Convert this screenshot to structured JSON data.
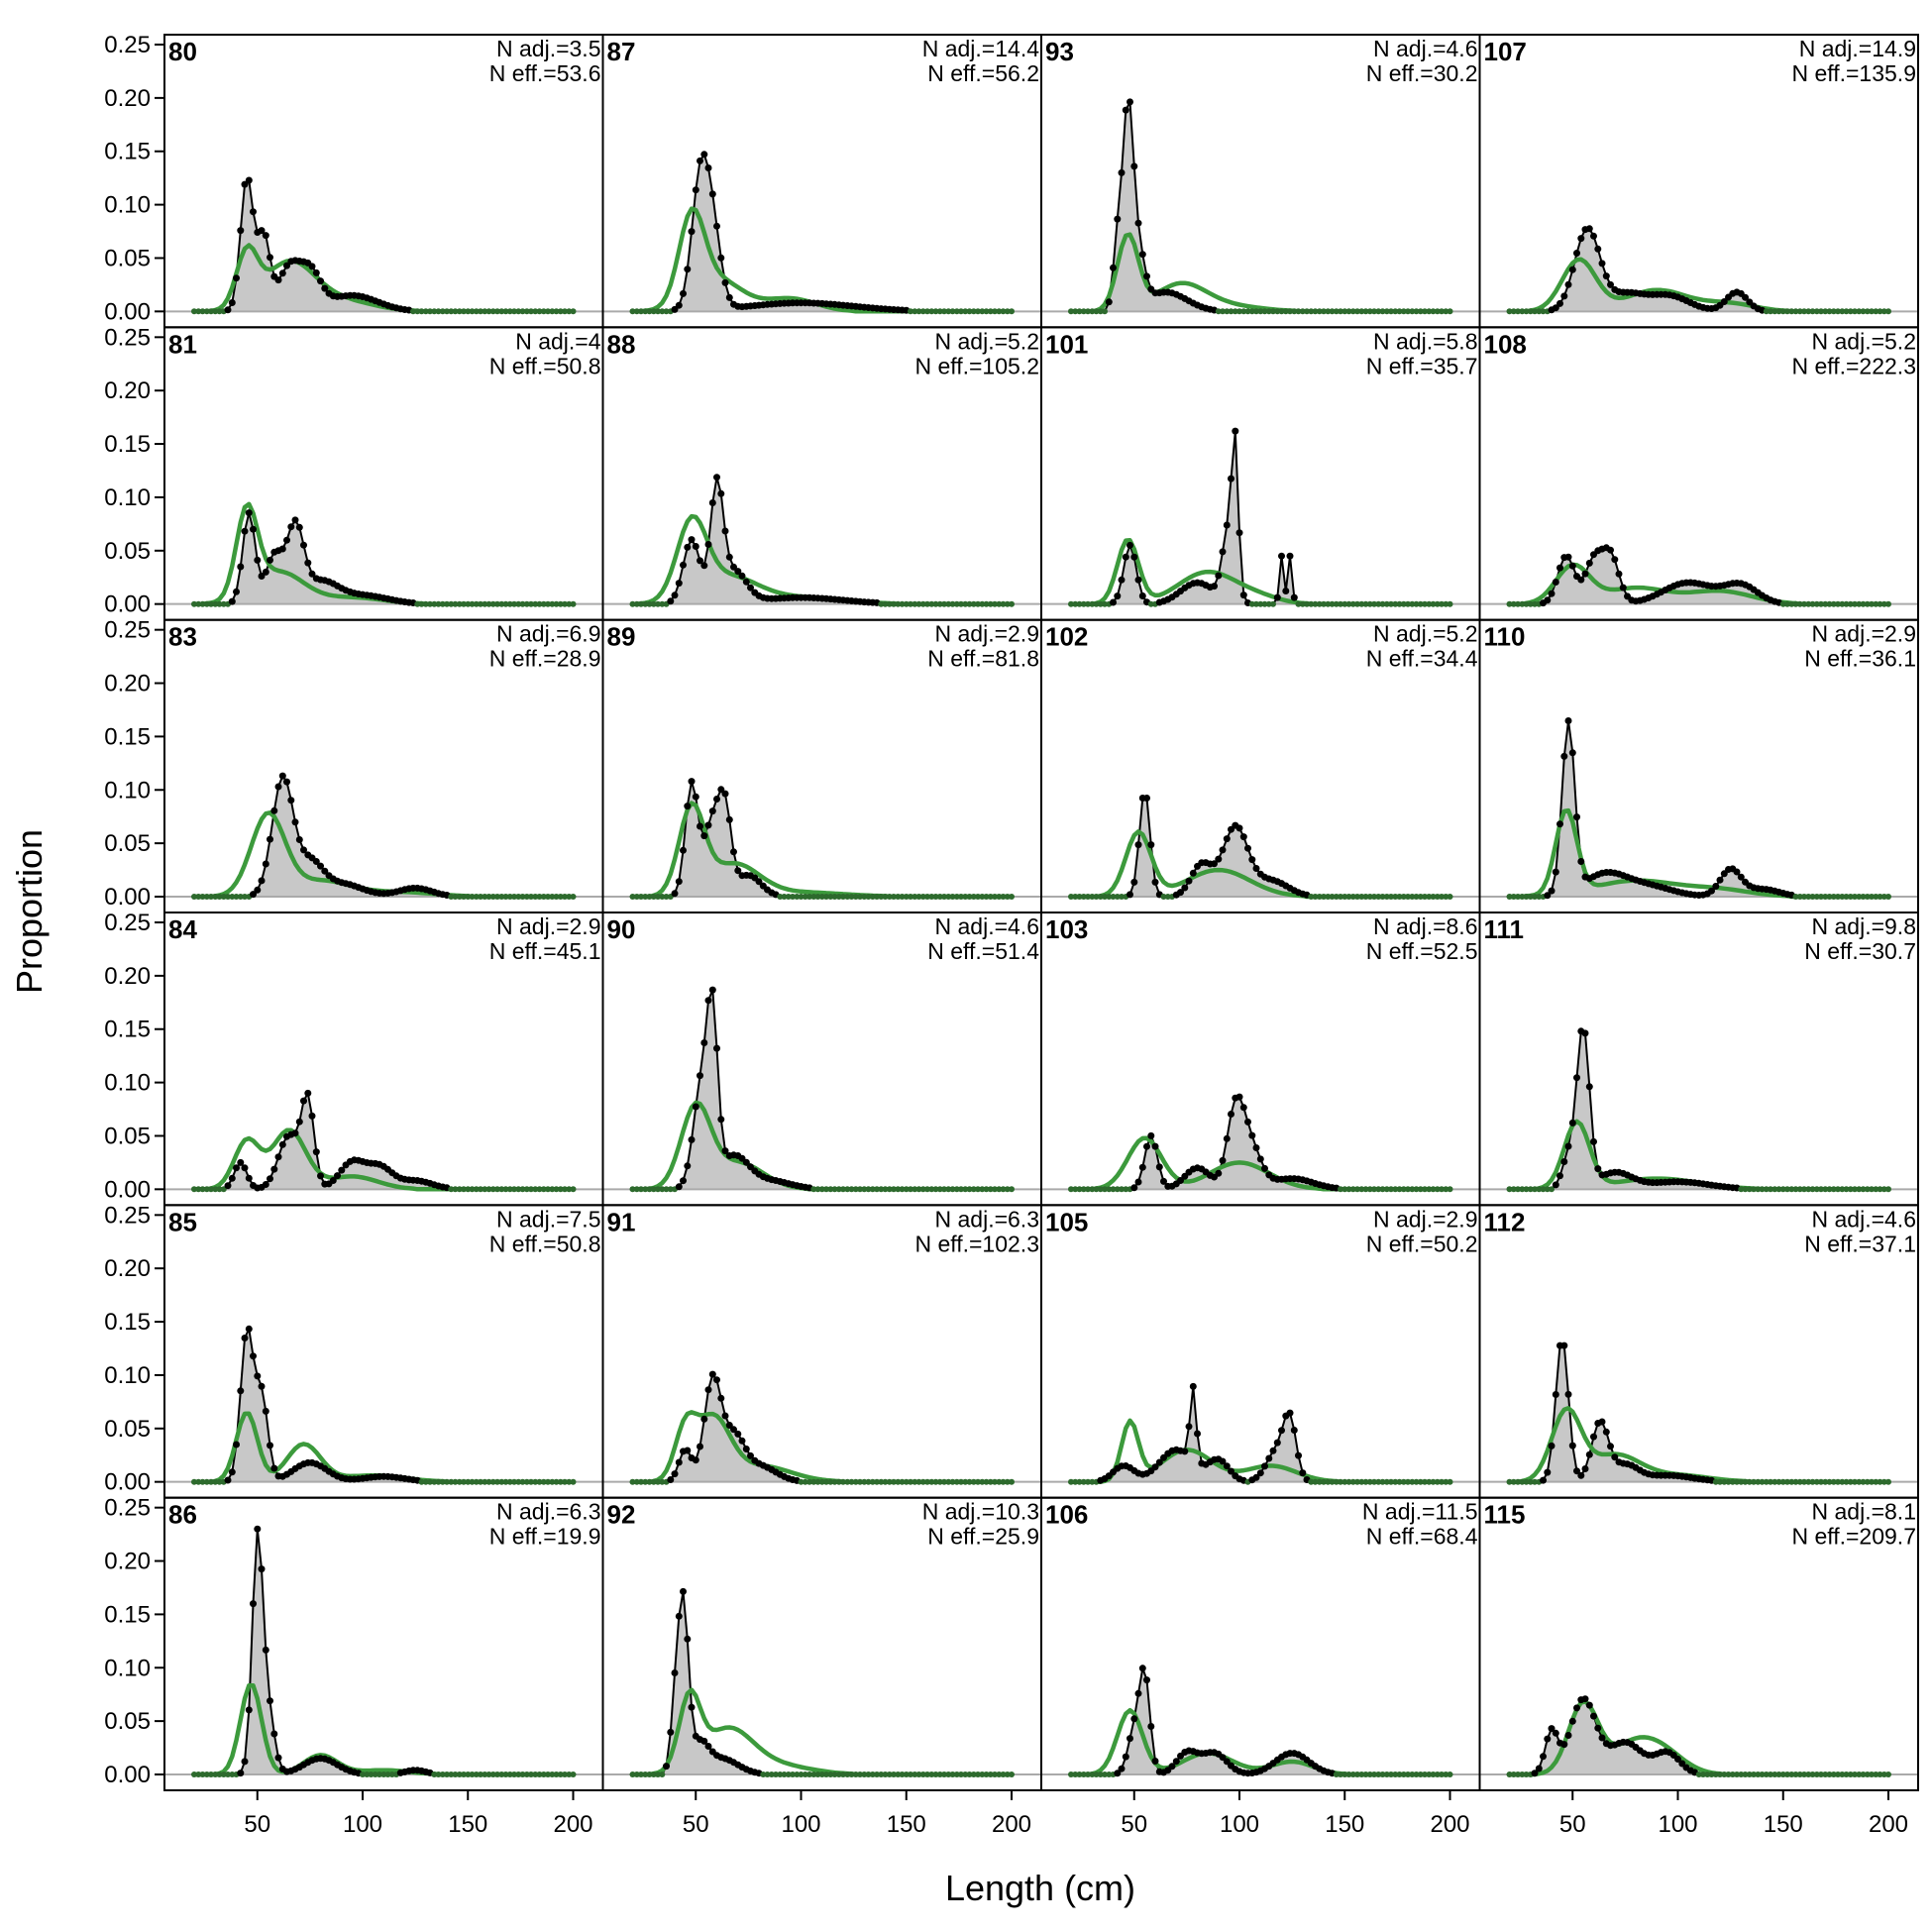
{
  "chart_data": {
    "type": "line",
    "xlabel": "Length (cm)",
    "ylabel": "Proportion",
    "xlim": [
      20,
      200
    ],
    "ylim": [
      0,
      0.25
    ],
    "x_ticks": [
      50,
      100,
      150,
      200
    ],
    "y_ticks": [
      "0.00",
      "0.05",
      "0.10",
      "0.15",
      "0.20",
      "0.25"
    ],
    "grid": false,
    "colors": {
      "observed": "#000000",
      "fill": "#c8c8c8",
      "expected": "#3c9a3c",
      "baseline": "#aaaaaa"
    },
    "columns": 4,
    "rows": 6,
    "panels": [
      {
        "id": "80",
        "n_adj": "N adj.=3.5",
        "n_eff": "N eff.=53.6",
        "obs_peaks": [
          [
            45,
            0.125,
            3
          ],
          [
            53,
            0.07,
            3
          ],
          [
            65,
            0.04,
            5
          ],
          [
            75,
            0.035,
            5
          ],
          [
            95,
            0.015,
            12
          ]
        ],
        "exp_peaks": [
          [
            45,
            0.05,
            5
          ],
          [
            65,
            0.045,
            12
          ],
          [
            90,
            0.01,
            15
          ]
        ]
      },
      {
        "id": "87",
        "n_adj": "N adj.=14.4",
        "n_eff": "N eff.=56.2",
        "obs_peaks": [
          [
            52,
            0.117,
            4
          ],
          [
            58,
            0.07,
            4
          ],
          [
            100,
            0.008,
            25
          ]
        ],
        "exp_peaks": [
          [
            48,
            0.078,
            6
          ],
          [
            60,
            0.03,
            12
          ],
          [
            95,
            0.012,
            12
          ]
        ]
      },
      {
        "id": "93",
        "n_adj": "N adj.=4.6",
        "n_eff": "N eff.=30.2",
        "obs_peaks": [
          [
            42,
            0.06,
            2
          ],
          [
            47,
            0.185,
            2.5
          ],
          [
            52,
            0.05,
            3
          ],
          [
            65,
            0.018,
            10
          ]
        ],
        "exp_peaks": [
          [
            47,
            0.07,
            5
          ],
          [
            72,
            0.025,
            12
          ],
          [
            95,
            0.005,
            15
          ]
        ]
      },
      {
        "id": "107",
        "n_adj": "N adj.=14.9",
        "n_eff": "N eff.=135.9",
        "obs_peaks": [
          [
            57,
            0.077,
            6
          ],
          [
            75,
            0.015,
            8
          ],
          [
            95,
            0.015,
            10
          ],
          [
            128,
            0.018,
            5
          ]
        ],
        "exp_peaks": [
          [
            53,
            0.048,
            8
          ],
          [
            90,
            0.02,
            15
          ],
          [
            125,
            0.007,
            12
          ]
        ]
      },
      {
        "id": "81",
        "n_adj": "N adj.=4",
        "n_eff": "N eff.=50.8",
        "obs_peaks": [
          [
            46,
            0.085,
            3
          ],
          [
            58,
            0.045,
            4
          ],
          [
            68,
            0.07,
            4
          ],
          [
            80,
            0.02,
            8
          ],
          [
            100,
            0.008,
            12
          ]
        ],
        "exp_peaks": [
          [
            45,
            0.08,
            5
          ],
          [
            60,
            0.03,
            12
          ],
          [
            95,
            0.006,
            15
          ]
        ]
      },
      {
        "id": "88",
        "n_adj": "N adj.=5.2",
        "n_eff": "N eff.=105.2",
        "obs_peaks": [
          [
            48,
            0.06,
            4
          ],
          [
            60,
            0.105,
            3
          ],
          [
            68,
            0.03,
            6
          ],
          [
            100,
            0.006,
            20
          ]
        ],
        "exp_peaks": [
          [
            48,
            0.07,
            7
          ],
          [
            65,
            0.025,
            14
          ],
          [
            100,
            0.006,
            20
          ]
        ]
      },
      {
        "id": "101",
        "n_adj": "N adj.=5.8",
        "n_eff": "N eff.=35.7",
        "obs_peaks": [
          [
            48,
            0.055,
            3
          ],
          [
            80,
            0.02,
            8
          ],
          [
            95,
            0.07,
            3
          ],
          [
            98,
            0.118,
            1.5
          ],
          [
            120,
            0.045,
            1
          ],
          [
            124,
            0.045,
            1
          ]
        ],
        "exp_peaks": [
          [
            47,
            0.06,
            5
          ],
          [
            85,
            0.03,
            14
          ],
          [
            110,
            0.005,
            10
          ]
        ]
      },
      {
        "id": "108",
        "n_adj": "N adj.=5.2",
        "n_eff": "N eff.=222.3",
        "obs_peaks": [
          [
            47,
            0.045,
            4
          ],
          [
            60,
            0.04,
            4
          ],
          [
            68,
            0.045,
            4
          ],
          [
            105,
            0.02,
            12
          ],
          [
            130,
            0.017,
            8
          ]
        ],
        "exp_peaks": [
          [
            50,
            0.035,
            8
          ],
          [
            80,
            0.015,
            15
          ],
          [
            120,
            0.012,
            15
          ]
        ]
      },
      {
        "id": "83",
        "n_adj": "N adj.=6.9",
        "n_eff": "N eff.=28.9",
        "obs_peaks": [
          [
            62,
            0.11,
            5
          ],
          [
            75,
            0.03,
            6
          ],
          [
            90,
            0.012,
            10
          ],
          [
            125,
            0.008,
            8
          ]
        ],
        "exp_peaks": [
          [
            55,
            0.075,
            8
          ],
          [
            80,
            0.015,
            15
          ],
          [
            120,
            0.004,
            15
          ]
        ]
      },
      {
        "id": "89",
        "n_adj": "N adj.=2.9",
        "n_eff": "N eff.=81.8",
        "obs_peaks": [
          [
            48,
            0.105,
            3
          ],
          [
            58,
            0.07,
            4
          ],
          [
            64,
            0.07,
            3
          ],
          [
            75,
            0.02,
            6
          ]
        ],
        "exp_peaks": [
          [
            48,
            0.08,
            6
          ],
          [
            68,
            0.03,
            12
          ],
          [
            100,
            0.004,
            20
          ]
        ]
      },
      {
        "id": "102",
        "n_adj": "N adj.=5.2",
        "n_eff": "N eff.=34.4",
        "obs_peaks": [
          [
            55,
            0.1,
            2.5
          ],
          [
            82,
            0.03,
            5
          ],
          [
            98,
            0.065,
            6
          ],
          [
            115,
            0.015,
            8
          ]
        ],
        "exp_peaks": [
          [
            52,
            0.06,
            6
          ],
          [
            90,
            0.025,
            15
          ]
        ]
      },
      {
        "id": "110",
        "n_adj": "N adj.=2.9",
        "n_eff": "N eff.=36.1",
        "obs_peaks": [
          [
            48,
            0.16,
            3
          ],
          [
            65,
            0.02,
            10
          ],
          [
            85,
            0.01,
            12
          ],
          [
            125,
            0.025,
            5
          ],
          [
            140,
            0.007,
            8
          ]
        ],
        "exp_peaks": [
          [
            47,
            0.078,
            5
          ],
          [
            80,
            0.015,
            20
          ],
          [
            120,
            0.006,
            15
          ]
        ]
      },
      {
        "id": "84",
        "n_adj": "N adj.=2.9",
        "n_eff": "N eff.=45.1",
        "obs_peaks": [
          [
            42,
            0.025,
            3
          ],
          [
            65,
            0.05,
            5
          ],
          [
            74,
            0.08,
            3
          ],
          [
            95,
            0.025,
            6
          ],
          [
            108,
            0.02,
            6
          ],
          [
            125,
            0.008,
            8
          ]
        ],
        "exp_peaks": [
          [
            45,
            0.045,
            6
          ],
          [
            65,
            0.055,
            8
          ],
          [
            95,
            0.012,
            12
          ]
        ]
      },
      {
        "id": "90",
        "n_adj": "N adj.=4.6",
        "n_eff": "N eff.=51.4",
        "obs_peaks": [
          [
            53,
            0.1,
            4
          ],
          [
            58,
            0.13,
            2.5
          ],
          [
            68,
            0.03,
            7
          ],
          [
            85,
            0.008,
            10
          ]
        ],
        "exp_peaks": [
          [
            50,
            0.075,
            7
          ],
          [
            70,
            0.025,
            12
          ]
        ]
      },
      {
        "id": "103",
        "n_adj": "N adj.=8.6",
        "n_eff": "N eff.=52.5",
        "obs_peaks": [
          [
            58,
            0.05,
            3
          ],
          [
            80,
            0.02,
            6
          ],
          [
            98,
            0.07,
            4
          ],
          [
            105,
            0.04,
            5
          ],
          [
            125,
            0.01,
            10
          ]
        ],
        "exp_peaks": [
          [
            55,
            0.048,
            8
          ],
          [
            100,
            0.025,
            14
          ]
        ]
      },
      {
        "id": "111",
        "n_adj": "N adj.=9.8",
        "n_eff": "N eff.=30.7",
        "obs_peaks": [
          [
            55,
            0.15,
            3
          ],
          [
            48,
            0.03,
            3
          ],
          [
            70,
            0.015,
            8
          ],
          [
            100,
            0.007,
            15
          ]
        ],
        "exp_peaks": [
          [
            52,
            0.062,
            6
          ],
          [
            90,
            0.01,
            20
          ]
        ]
      },
      {
        "id": "85",
        "n_adj": "N adj.=7.5",
        "n_eff": "N eff.=50.8",
        "obs_peaks": [
          [
            45,
            0.14,
            3
          ],
          [
            52,
            0.08,
            3
          ],
          [
            75,
            0.018,
            8
          ],
          [
            110,
            0.005,
            10
          ]
        ],
        "exp_peaks": [
          [
            45,
            0.065,
            5
          ],
          [
            72,
            0.035,
            8
          ],
          [
            105,
            0.006,
            15
          ]
        ]
      },
      {
        "id": "91",
        "n_adj": "N adj.=6.3",
        "n_eff": "N eff.=102.3",
        "obs_peaks": [
          [
            45,
            0.03,
            3
          ],
          [
            58,
            0.095,
            4
          ],
          [
            68,
            0.04,
            5
          ],
          [
            80,
            0.015,
            8
          ]
        ],
        "exp_peaks": [
          [
            45,
            0.045,
            5
          ],
          [
            58,
            0.057,
            8
          ],
          [
            80,
            0.015,
            15
          ]
        ]
      },
      {
        "id": "105",
        "n_adj": "N adj.=2.9",
        "n_eff": "N eff.=50.2",
        "obs_peaks": [
          [
            45,
            0.015,
            5
          ],
          [
            70,
            0.03,
            8
          ],
          [
            78,
            0.07,
            1.5
          ],
          [
            90,
            0.02,
            5
          ],
          [
            118,
            0.03,
            5
          ],
          [
            124,
            0.05,
            3
          ]
        ],
        "exp_peaks": [
          [
            48,
            0.055,
            4
          ],
          [
            75,
            0.03,
            12
          ],
          [
            115,
            0.015,
            12
          ]
        ]
      },
      {
        "id": "112",
        "n_adj": "N adj.=4.6",
        "n_eff": "N eff.=37.1",
        "obs_peaks": [
          [
            45,
            0.135,
            3
          ],
          [
            63,
            0.055,
            4
          ],
          [
            75,
            0.015,
            6
          ],
          [
            95,
            0.006,
            12
          ]
        ],
        "exp_peaks": [
          [
            47,
            0.065,
            7
          ],
          [
            70,
            0.025,
            12
          ],
          [
            100,
            0.006,
            15
          ]
        ]
      },
      {
        "id": "86",
        "n_adj": "N adj.=6.3",
        "n_eff": "N eff.=19.9",
        "obs_peaks": [
          [
            50,
            0.215,
            2.5
          ],
          [
            55,
            0.06,
            3
          ],
          [
            80,
            0.015,
            8
          ],
          [
            125,
            0.004,
            5
          ]
        ],
        "exp_peaks": [
          [
            47,
            0.085,
            5
          ],
          [
            80,
            0.018,
            8
          ],
          [
            110,
            0.004,
            12
          ]
        ]
      },
      {
        "id": "92",
        "n_adj": "N adj.=10.3",
        "n_eff": "N eff.=25.9",
        "obs_peaks": [
          [
            44,
            0.16,
            2.5
          ],
          [
            40,
            0.05,
            2
          ],
          [
            52,
            0.025,
            4
          ],
          [
            62,
            0.015,
            8
          ]
        ],
        "exp_peaks": [
          [
            47,
            0.065,
            5
          ],
          [
            65,
            0.042,
            12
          ],
          [
            90,
            0.008,
            15
          ]
        ]
      },
      {
        "id": "106",
        "n_adj": "N adj.=11.5",
        "n_eff": "N eff.=68.4",
        "obs_peaks": [
          [
            50,
            0.04,
            3
          ],
          [
            55,
            0.09,
            2.5
          ],
          [
            75,
            0.02,
            5
          ],
          [
            88,
            0.02,
            6
          ],
          [
            125,
            0.02,
            8
          ]
        ],
        "exp_peaks": [
          [
            48,
            0.06,
            6
          ],
          [
            85,
            0.02,
            12
          ],
          [
            125,
            0.012,
            10
          ]
        ]
      },
      {
        "id": "115",
        "n_adj": "N adj.=8.1",
        "n_eff": "N eff.=209.7",
        "obs_peaks": [
          [
            40,
            0.04,
            3
          ],
          [
            55,
            0.07,
            6
          ],
          [
            75,
            0.03,
            8
          ],
          [
            95,
            0.02,
            6
          ]
        ],
        "exp_peaks": [
          [
            55,
            0.065,
            7
          ],
          [
            80,
            0.03,
            12
          ],
          [
            95,
            0.012,
            10
          ]
        ]
      }
    ]
  }
}
